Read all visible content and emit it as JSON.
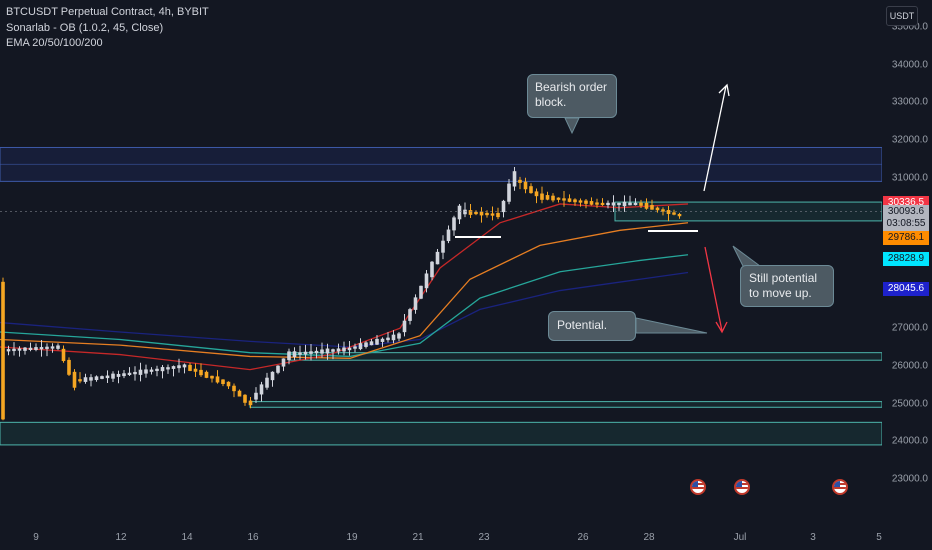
{
  "header": {
    "title": "BTCUSDT Perpetual Contract, 4h, BYBIT",
    "indicator1": "Sonarlab - OB (1.0.2, 45, Close)",
    "indicator2": "EMA 20/50/100/200"
  },
  "currency": "USDT",
  "price_ticks": [
    "35000.0",
    "34000.0",
    "33000.0",
    "32000.0",
    "31000.0",
    "27000.0",
    "26000.0",
    "25000.0",
    "24000.0",
    "23000.0"
  ],
  "price_badges": [
    {
      "label": "30336.5",
      "bg": "#f23645",
      "fg": "#ffffff",
      "value": 30336.5
    },
    {
      "label": "30093.6",
      "bg": "#b2b5be",
      "fg": "#131722",
      "value": 30093.6
    },
    {
      "label": "03:08:55",
      "bg": "#b2b5be",
      "fg": "#131722",
      "value": 29760
    },
    {
      "label": "29786.1",
      "bg": "#ff8c00",
      "fg": "#131722",
      "value": 29400
    },
    {
      "label": "28828.9",
      "bg": "#00e5ff",
      "fg": "#131722",
      "value": 28828.9
    },
    {
      "label": "28045.6",
      "bg": "#1e22cc",
      "fg": "#ffffff",
      "value": 28045.6
    }
  ],
  "time_ticks": [
    "9",
    "12",
    "14",
    "16",
    "19",
    "21",
    "23",
    "26",
    "28",
    "Jul",
    "3",
    "5"
  ],
  "callouts": {
    "bearish": "Bearish order block.",
    "still": "Still potential to move up.",
    "potential": "Potential."
  },
  "flag_icons": [
    "us-flag-icon",
    "us-flag-icon",
    "us-flag-icon"
  ],
  "colors": {
    "background": "#131722",
    "up_candle": "#d1d4dc",
    "down_candle": "#f5a623",
    "ema20": "#c62828",
    "ema50": "#e67e22",
    "ema100": "#26a69a",
    "ema200": "#1a237e"
  },
  "chart_data": {
    "type": "candlestick",
    "symbol": "BTCUSDT",
    "timeframe": "4h",
    "x_ticks": [
      "9",
      "12",
      "14",
      "16",
      "19",
      "21",
      "23",
      "26",
      "28",
      "Jul",
      "3",
      "5"
    ],
    "y_ticks": [
      35000,
      34000,
      33000,
      32000,
      31000,
      27000,
      26000,
      25000,
      24000,
      23000
    ],
    "ylim": [
      22500,
      35500
    ],
    "candles": [
      {
        "t": "Jun 8",
        "o": 26500,
        "h": 26700,
        "l": 26350,
        "c": 26600
      },
      {
        "t": "Jun 9",
        "o": 26600,
        "h": 26800,
        "l": 26400,
        "c": 26450
      },
      {
        "t": "Jun 10",
        "o": 26450,
        "h": 26550,
        "l": 25400,
        "c": 25700
      },
      {
        "t": "Jun 11",
        "o": 25700,
        "h": 26000,
        "l": 25600,
        "c": 25850
      },
      {
        "t": "Jun 12",
        "o": 25850,
        "h": 26000,
        "l": 25700,
        "c": 25900
      },
      {
        "t": "Jun 13",
        "o": 25900,
        "h": 26200,
        "l": 25800,
        "c": 26000
      },
      {
        "t": "Jun 14",
        "o": 26000,
        "h": 26100,
        "l": 25300,
        "c": 25800
      },
      {
        "t": "Jun 15",
        "o": 25800,
        "h": 25900,
        "l": 24800,
        "c": 25000
      },
      {
        "t": "Jun 16",
        "o": 25000,
        "h": 25800,
        "l": 24900,
        "c": 25700
      },
      {
        "t": "Jun 17",
        "o": 25700,
        "h": 26600,
        "l": 25600,
        "c": 26400
      },
      {
        "t": "Jun 18",
        "o": 26400,
        "h": 26700,
        "l": 26300,
        "c": 26500
      },
      {
        "t": "Jun 19",
        "o": 26500,
        "h": 26900,
        "l": 26300,
        "c": 26700
      },
      {
        "t": "Jun 20",
        "o": 26700,
        "h": 28500,
        "l": 26600,
        "c": 28200
      },
      {
        "t": "Jun 21",
        "o": 28200,
        "h": 30800,
        "l": 28100,
        "c": 30000
      },
      {
        "t": "Jun 22",
        "o": 30000,
        "h": 30500,
        "l": 29500,
        "c": 29900
      },
      {
        "t": "Jun 23",
        "o": 29900,
        "h": 31400,
        "l": 29800,
        "c": 30700
      },
      {
        "t": "Jun 24",
        "o": 30700,
        "h": 31000,
        "l": 30200,
        "c": 30500
      },
      {
        "t": "Jun 25",
        "o": 30500,
        "h": 31000,
        "l": 30300,
        "c": 30400
      },
      {
        "t": "Jun 26",
        "o": 30400,
        "h": 30700,
        "l": 30000,
        "c": 30100
      },
      {
        "t": "Jun 27",
        "o": 30100,
        "h": 30700,
        "l": 30000,
        "c": 30600
      },
      {
        "t": "Jun 28",
        "o": 30600,
        "h": 31000,
        "l": 30000,
        "c": 30100
      },
      {
        "t": "Jun 29",
        "o": 30100,
        "h": 30400,
        "l": 29900,
        "c": 30093.6
      }
    ],
    "ema20_last": 30336.5,
    "ema50_last": 29786.1,
    "ema100_last": 28828.9,
    "ema200_last": 28045.6,
    "last_price": 30093.6,
    "countdown": "03:08:55",
    "annotations": [
      "Bearish order block.",
      "Still potential to move up.",
      "Potential."
    ]
  }
}
